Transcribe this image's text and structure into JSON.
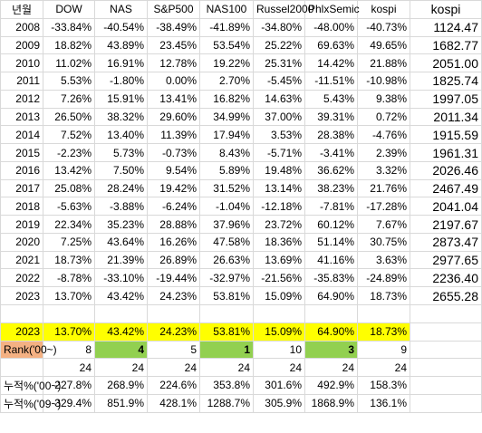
{
  "header": [
    "년월",
    "DOW",
    "NAS",
    "S&P500",
    "NAS100",
    "Russel2000",
    "PhlxSemic",
    "kospi",
    "kospi"
  ],
  "rows": [
    [
      "2008",
      "-33.84%",
      "-40.54%",
      "-38.49%",
      "-41.89%",
      "-34.80%",
      "-48.00%",
      "-40.73%",
      "1124.47"
    ],
    [
      "2009",
      "18.82%",
      "43.89%",
      "23.45%",
      "53.54%",
      "25.22%",
      "69.63%",
      "49.65%",
      "1682.77"
    ],
    [
      "2010",
      "11.02%",
      "16.91%",
      "12.78%",
      "19.22%",
      "25.31%",
      "14.42%",
      "21.88%",
      "2051.00"
    ],
    [
      "2011",
      "5.53%",
      "-1.80%",
      "0.00%",
      "2.70%",
      "-5.45%",
      "-11.51%",
      "-10.98%",
      "1825.74"
    ],
    [
      "2012",
      "7.26%",
      "15.91%",
      "13.41%",
      "16.82%",
      "14.63%",
      "5.43%",
      "9.38%",
      "1997.05"
    ],
    [
      "2013",
      "26.50%",
      "38.32%",
      "29.60%",
      "34.99%",
      "37.00%",
      "39.31%",
      "0.72%",
      "2011.34"
    ],
    [
      "2014",
      "7.52%",
      "13.40%",
      "11.39%",
      "17.94%",
      "3.53%",
      "28.38%",
      "-4.76%",
      "1915.59"
    ],
    [
      "2015",
      "-2.23%",
      "5.73%",
      "-0.73%",
      "8.43%",
      "-5.71%",
      "-3.41%",
      "2.39%",
      "1961.31"
    ],
    [
      "2016",
      "13.42%",
      "7.50%",
      "9.54%",
      "5.89%",
      "19.48%",
      "36.62%",
      "3.32%",
      "2026.46"
    ],
    [
      "2017",
      "25.08%",
      "28.24%",
      "19.42%",
      "31.52%",
      "13.14%",
      "38.23%",
      "21.76%",
      "2467.49"
    ],
    [
      "2018",
      "-5.63%",
      "-3.88%",
      "-6.24%",
      "-1.04%",
      "-12.18%",
      "-7.81%",
      "-17.28%",
      "2041.04"
    ],
    [
      "2019",
      "22.34%",
      "35.23%",
      "28.88%",
      "37.96%",
      "23.72%",
      "60.12%",
      "7.67%",
      "2197.67"
    ],
    [
      "2020",
      "7.25%",
      "43.64%",
      "16.26%",
      "47.58%",
      "18.36%",
      "51.14%",
      "30.75%",
      "2873.47"
    ],
    [
      "2021",
      "18.73%",
      "21.39%",
      "26.89%",
      "26.63%",
      "13.69%",
      "41.16%",
      "3.63%",
      "2977.65"
    ],
    [
      "2022",
      "-8.78%",
      "-33.10%",
      "-19.44%",
      "-32.97%",
      "-21.56%",
      "-35.83%",
      "-24.89%",
      "2236.40"
    ],
    [
      "2023",
      "13.70%",
      "43.42%",
      "24.23%",
      "53.81%",
      "15.09%",
      "64.90%",
      "18.73%",
      "2655.28"
    ]
  ],
  "summary": {
    "year_row": [
      "2023",
      "13.70%",
      "43.42%",
      "24.23%",
      "53.81%",
      "15.09%",
      "64.90%",
      "18.73%"
    ],
    "rank_row": [
      "Rank('00~)",
      "8",
      "4",
      "5",
      "1",
      "10",
      "3",
      "9"
    ],
    "count_row": [
      "24",
      "24",
      "24",
      "24",
      "24",
      "24",
      "24"
    ],
    "cum00_row": [
      "누적%('00~)",
      "227.8%",
      "268.9%",
      "224.6%",
      "353.8%",
      "301.6%",
      "492.9%",
      "158.3%"
    ],
    "cum09_row": [
      "누적%('09~)",
      "329.4%",
      "851.9%",
      "428.1%",
      "1288.7%",
      "305.9%",
      "1868.9%",
      "136.1%"
    ]
  }
}
